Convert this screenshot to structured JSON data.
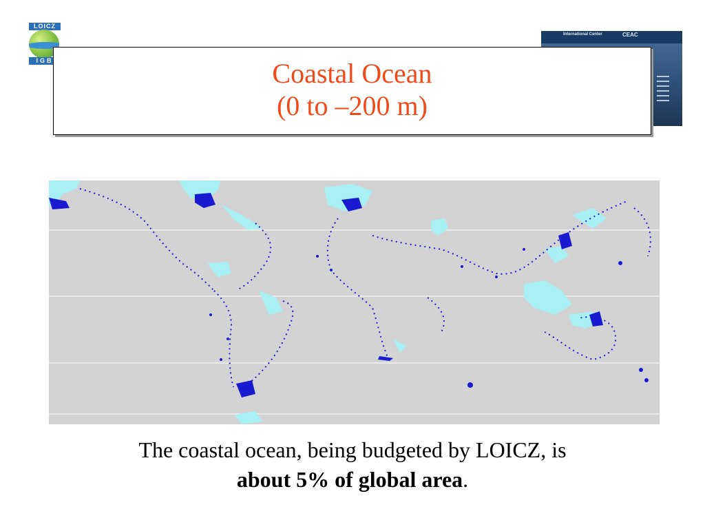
{
  "logo": {
    "top_text": "LOICZ",
    "bottom_text": "IGB"
  },
  "thumbnail": {
    "header_left": "International Center",
    "header_right": "CEAC"
  },
  "title": {
    "line1": "Coastal Ocean",
    "line2": "(0 to –200 m)"
  },
  "map": {
    "colors": {
      "land": "#d3d3d3",
      "shelf_light": "#a8f0f4",
      "shelf_dark": "#1a1ad0",
      "grid": "#ffffff"
    }
  },
  "caption": {
    "line1": "The coastal ocean, being budgeted by LOICZ, is",
    "line2_bold": "about 5% of global area",
    "line2_end": "."
  }
}
